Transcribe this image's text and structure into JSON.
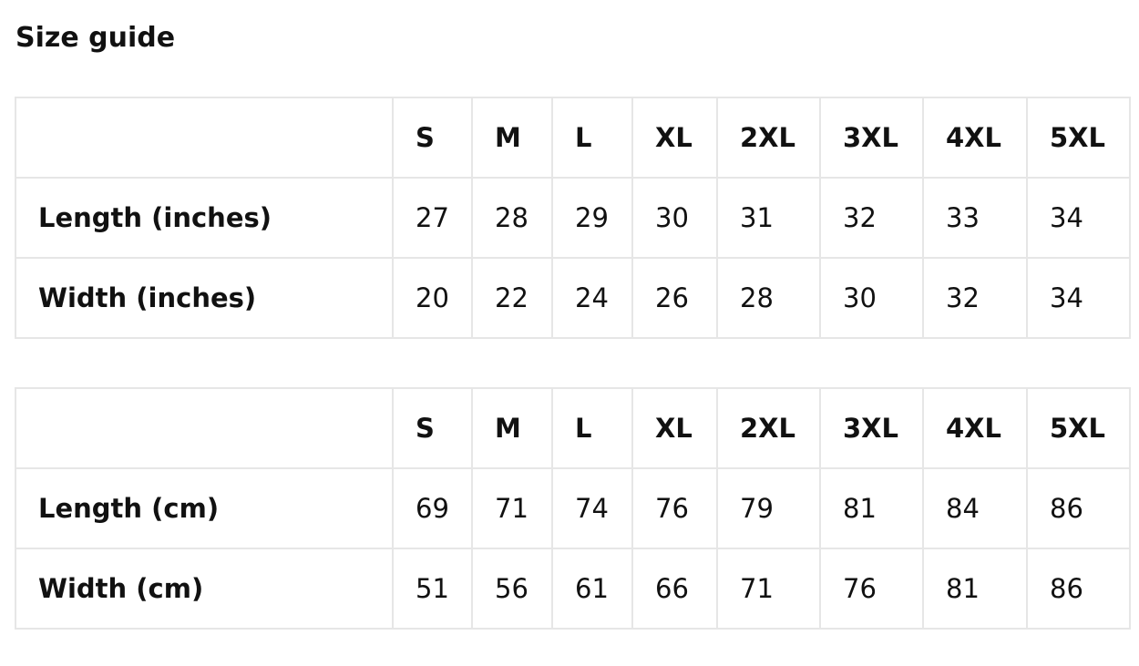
{
  "title": "Size guide",
  "tables": [
    {
      "sizes": [
        "S",
        "M",
        "L",
        "XL",
        "2XL",
        "3XL",
        "4XL",
        "5XL"
      ],
      "rows": [
        {
          "label": "Length (inches)",
          "values": [
            "27",
            "28",
            "29",
            "30",
            "31",
            "32",
            "33",
            "34"
          ]
        },
        {
          "label": "Width (inches)",
          "values": [
            "20",
            "22",
            "24",
            "26",
            "28",
            "30",
            "32",
            "34"
          ]
        }
      ]
    },
    {
      "sizes": [
        "S",
        "M",
        "L",
        "XL",
        "2XL",
        "3XL",
        "4XL",
        "5XL"
      ],
      "rows": [
        {
          "label": "Length (cm)",
          "values": [
            "69",
            "71",
            "74",
            "76",
            "79",
            "81",
            "84",
            "86"
          ]
        },
        {
          "label": "Width (cm)",
          "values": [
            "51",
            "56",
            "61",
            "66",
            "71",
            "76",
            "81",
            "86"
          ]
        }
      ]
    }
  ]
}
